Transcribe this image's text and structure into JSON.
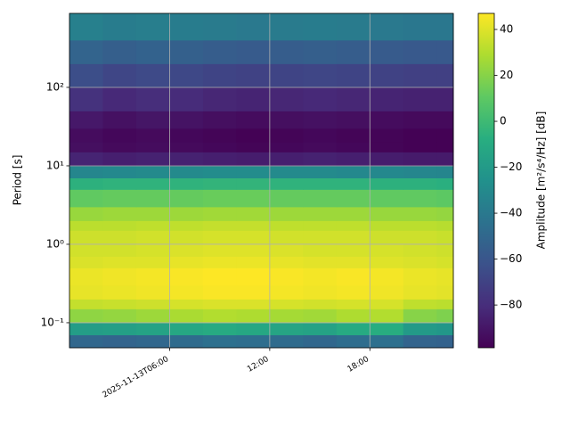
{
  "chart_data": {
    "type": "heatmap",
    "colormap": "viridis",
    "grid": true,
    "log_y": true,
    "ylabel": "Period [s]",
    "colorbar_label": "Amplitude [m²/s⁴/Hz] [dB]",
    "xlim": [
      "2025-11-13T00:00",
      "2025-11-13T23:00"
    ],
    "xticks": [
      {
        "value": "2025-11-13T06:00",
        "label": "2025-11-13T06:00"
      },
      {
        "value": "2025-11-13T12:00",
        "label": "12:00"
      },
      {
        "value": "2025-11-13T18:00",
        "label": "18:00"
      }
    ],
    "ylim": [
      0.048,
      877
    ],
    "yticks": [
      {
        "value": 0.1,
        "label": "10⁻¹"
      },
      {
        "value": 1,
        "label": "10⁰"
      },
      {
        "value": 10,
        "label": "10¹"
      },
      {
        "value": 100,
        "label": "10²"
      }
    ],
    "clim": [
      -98.6,
      47
    ],
    "cticks": [
      {
        "value": -80,
        "label": "−80"
      },
      {
        "value": -60,
        "label": "−60"
      },
      {
        "value": -40,
        "label": "−40"
      },
      {
        "value": -20,
        "label": "−20"
      },
      0,
      20,
      40
    ],
    "xbins": [
      "2025-11-13T00:00",
      "2025-11-13T02:00",
      "2025-11-13T04:00",
      "2025-11-13T06:00",
      "2025-11-13T08:00",
      "2025-11-13T10:00",
      "2025-11-13T12:00",
      "2025-11-13T14:00",
      "2025-11-13T16:00",
      "2025-11-13T18:00",
      "2025-11-13T20:00",
      "2025-11-13T22:00",
      "2025-11-13T23:00"
    ],
    "ybins": [
      0.048,
      0.07,
      0.1,
      0.15,
      0.2,
      0.3,
      0.5,
      0.7,
      1,
      1.5,
      2,
      3,
      5,
      7,
      10,
      15,
      20,
      30,
      50,
      100,
      200,
      400,
      877
    ],
    "values": [
      [
        -50,
        -52,
        -50,
        -48,
        -45,
        -46,
        -48,
        -50,
        -47,
        -45,
        -52,
        -53
      ],
      [
        -18,
        -17,
        -15,
        -12,
        -10,
        -12,
        -14,
        -15,
        -10,
        -8,
        -20,
        -22
      ],
      [
        22,
        23,
        25,
        28,
        30,
        29,
        27,
        26,
        29,
        30,
        20,
        18
      ],
      [
        34,
        35,
        36,
        38,
        39,
        39,
        38,
        37,
        38,
        38,
        33,
        32
      ],
      [
        42,
        43,
        44,
        45,
        46,
        46,
        45,
        44,
        45,
        44,
        42,
        41
      ],
      [
        43,
        44,
        45,
        46,
        47,
        47,
        46,
        45,
        46,
        45,
        43,
        42
      ],
      [
        39,
        40,
        40,
        42,
        43,
        43,
        42,
        41,
        41,
        40,
        39,
        38
      ],
      [
        37,
        37,
        38,
        39,
        40,
        40,
        39,
        38,
        38,
        38,
        37,
        36
      ],
      [
        36,
        36,
        37,
        37,
        38,
        38,
        37,
        37,
        37,
        36,
        36,
        35
      ],
      [
        32,
        32,
        33,
        33,
        34,
        34,
        33,
        33,
        33,
        32,
        32,
        31
      ],
      [
        24,
        25,
        25,
        25,
        26,
        26,
        25,
        25,
        25,
        24,
        24,
        23
      ],
      [
        11,
        12,
        12,
        12,
        13,
        13,
        12,
        12,
        12,
        11,
        11,
        10
      ],
      [
        -6,
        -5,
        -5,
        -5,
        -4,
        -4,
        -5,
        -5,
        -5,
        -6,
        -6,
        -7
      ],
      [
        -32,
        -31,
        -30,
        -30,
        -29,
        -29,
        -30,
        -30,
        -31,
        -31,
        -32,
        -33
      ],
      [
        -84,
        -86,
        -85,
        -85,
        -86,
        -87,
        -86,
        -85,
        -86,
        -87,
        -88,
        -88
      ],
      [
        -93,
        -95,
        -94,
        -95,
        -96,
        -97,
        -96,
        -95,
        -96,
        -97,
        -98,
        -98
      ],
      [
        -94,
        -96,
        -95,
        -96,
        -97,
        -98,
        -97,
        -96,
        -97,
        -97,
        -98,
        -98
      ],
      [
        -89,
        -92,
        -90,
        -91,
        -93,
        -94,
        -93,
        -92,
        -93,
        -94,
        -95,
        -95
      ],
      [
        -78,
        -82,
        -80,
        -81,
        -83,
        -84,
        -83,
        -82,
        -83,
        -84,
        -85,
        -85
      ],
      [
        -64,
        -68,
        -66,
        -67,
        -69,
        -70,
        -69,
        -68,
        -69,
        -70,
        -71,
        -71
      ],
      [
        -52,
        -55,
        -53,
        -54,
        -56,
        -57,
        -56,
        -55,
        -56,
        -57,
        -58,
        -58
      ],
      [
        -36,
        -38,
        -37,
        -38,
        -39,
        -40,
        -39,
        -38,
        -39,
        -40,
        -41,
        -41
      ]
    ]
  }
}
